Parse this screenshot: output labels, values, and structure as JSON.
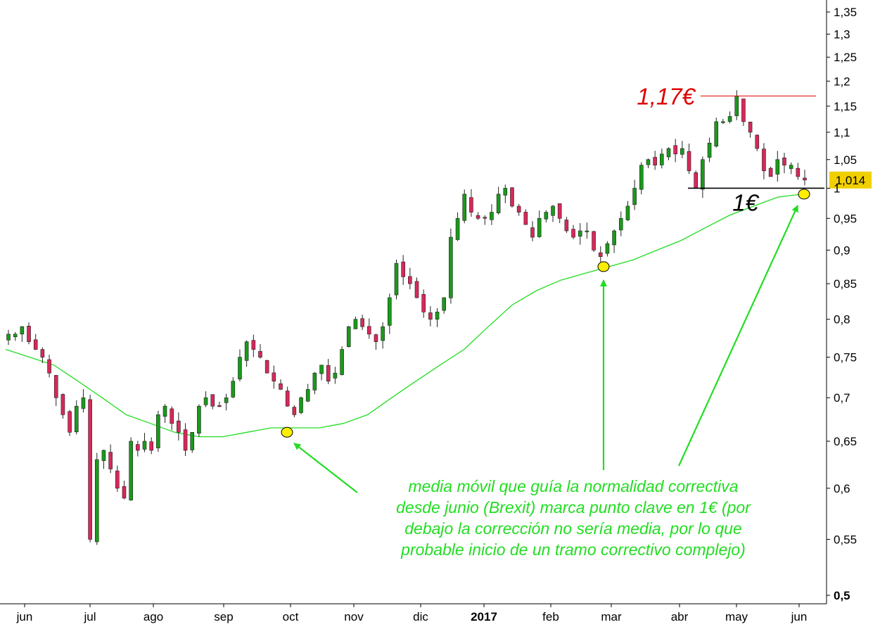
{
  "chart_data": {
    "type": "candlestick",
    "title": "",
    "y_scale": "log",
    "ylim": [
      0.5,
      1.37
    ],
    "y_ticks": [
      0.5,
      0.55,
      0.6,
      0.65,
      0.7,
      0.75,
      0.8,
      0.85,
      0.9,
      0.95,
      1.0,
      1.05,
      1.1,
      1.15,
      1.2,
      1.25,
      1.3,
      1.35
    ],
    "y_tick_labels": [
      "0,5",
      "0,55",
      "0,6",
      "0,65",
      "0,7",
      "0,75",
      "0,8",
      "0,85",
      "0,9",
      "0,95",
      "1",
      "1,05",
      "1,1",
      "1,15",
      "1,2",
      "1,25",
      "1,3",
      "1,35"
    ],
    "x_tick_labels": [
      "jun",
      "jul",
      "ago",
      "sep",
      "oct",
      "nov",
      "dic",
      "2017",
      "feb",
      "mar",
      "abr",
      "may",
      "jun"
    ],
    "bold_x_tick": "2017",
    "last_price_label": "1,014",
    "last_price": 1.014,
    "colors": {
      "up": "#1a9a1a",
      "down": "#d8285a",
      "moving_average": "#22dd22",
      "annotation": "#22dd22",
      "resistance": "#e00000",
      "support": "#000000",
      "marker": "#ffee00",
      "price_box": "#f0d000"
    },
    "closes_approx": [
      0.78,
      0.78,
      0.79,
      0.77,
      0.76,
      0.75,
      0.73,
      0.7,
      0.68,
      0.66,
      0.69,
      0.7,
      0.55,
      0.63,
      0.64,
      0.62,
      0.6,
      0.59,
      0.65,
      0.64,
      0.65,
      0.64,
      0.68,
      0.69,
      0.67,
      0.66,
      0.64,
      0.66,
      0.69,
      0.7,
      0.69,
      0.69,
      0.7,
      0.72,
      0.75,
      0.77,
      0.76,
      0.75,
      0.73,
      0.72,
      0.71,
      0.69,
      0.68,
      0.7,
      0.71,
      0.73,
      0.74,
      0.72,
      0.73,
      0.76,
      0.79,
      0.8,
      0.79,
      0.78,
      0.77,
      0.79,
      0.83,
      0.88,
      0.86,
      0.85,
      0.83,
      0.81,
      0.8,
      0.81,
      0.83,
      0.92,
      0.95,
      0.99,
      0.96,
      0.95,
      0.95,
      0.96,
      0.99,
      1.0,
      0.97,
      0.96,
      0.94,
      0.92,
      0.95,
      0.96,
      0.97,
      0.95,
      0.93,
      0.92,
      0.93,
      0.93,
      0.9,
      0.89,
      0.91,
      0.93,
      0.95,
      0.97,
      1.0,
      1.04,
      1.05,
      1.04,
      1.06,
      1.07,
      1.06,
      1.07,
      1.03,
      1.0,
      1.05,
      1.08,
      1.12,
      1.12,
      1.13,
      1.17,
      1.12,
      1.1,
      1.07,
      1.03,
      1.02,
      1.05,
      1.04,
      1.04,
      1.02,
      1.014
    ],
    "moving_average_approx": [
      0.76,
      0.75,
      0.74,
      0.72,
      0.7,
      0.68,
      0.67,
      0.66,
      0.655,
      0.655,
      0.66,
      0.665,
      0.665,
      0.665,
      0.67,
      0.68,
      0.7,
      0.72,
      0.74,
      0.76,
      0.79,
      0.82,
      0.84,
      0.855,
      0.865,
      0.875,
      0.885,
      0.9,
      0.915,
      0.935,
      0.955,
      0.97,
      0.985,
      0.99
    ],
    "annotations": {
      "resistance_label": "1,17€",
      "resistance_value": 1.17,
      "support_label": "1€",
      "support_value": 1.0,
      "note_lines": [
        "media móvil que guía la normalidad correctiva",
        "desde junio (Brexit) marca punto clave en 1€ (por",
        "debajo la corrección no sería media, por lo que",
        "probable inicio de un tramo correctivo complejo)"
      ]
    }
  }
}
